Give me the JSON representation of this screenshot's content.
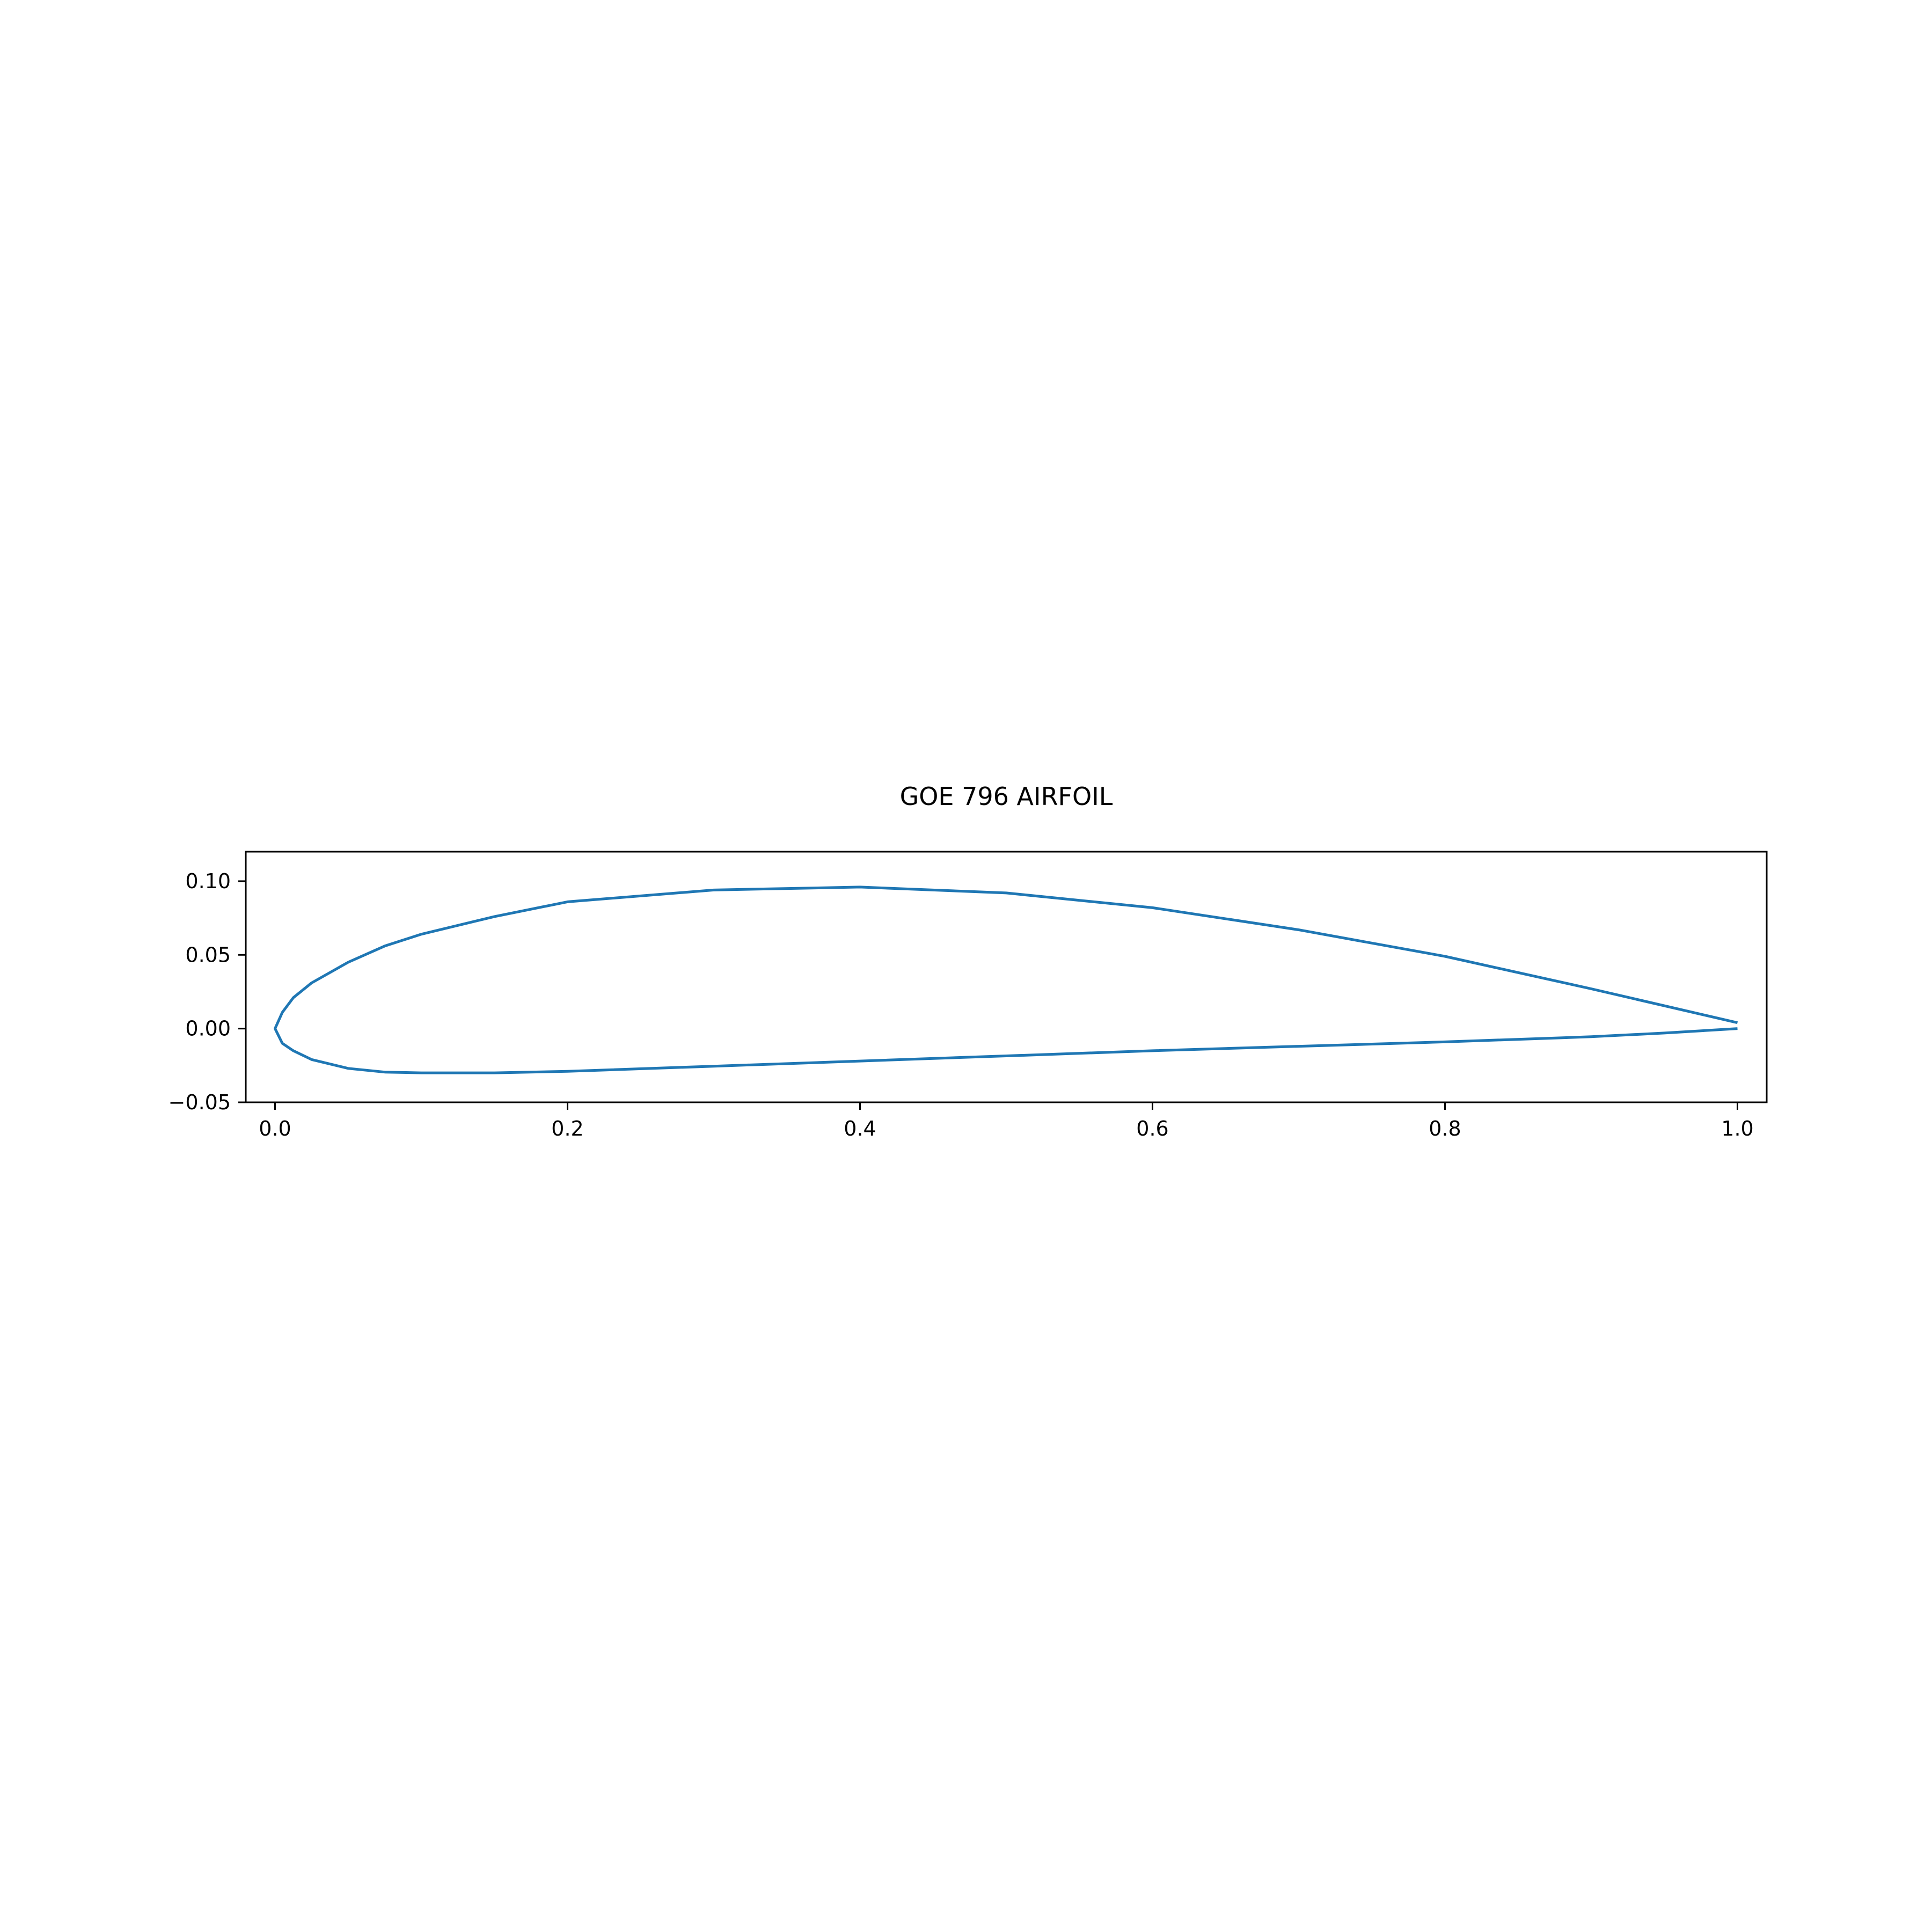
{
  "chart_data": {
    "type": "line",
    "title": "GOE 796 AIRFOIL",
    "xlabel": "",
    "ylabel": "",
    "xlim": [
      -0.02,
      1.02
    ],
    "ylim": [
      -0.05,
      0.12
    ],
    "x_ticks": [
      0.0,
      0.2,
      0.4,
      0.6,
      0.8,
      1.0
    ],
    "x_tick_labels": [
      "0.0",
      "0.2",
      "0.4",
      "0.6",
      "0.8",
      "1.0"
    ],
    "y_ticks": [
      -0.05,
      0.0,
      0.05,
      0.1
    ],
    "y_tick_labels": [
      "−0.05",
      "0.00",
      "0.05",
      "0.10"
    ],
    "grid": false,
    "series": [
      {
        "color": "#1f77b4",
        "x": [
          1.0,
          0.9,
          0.8,
          0.7,
          0.6,
          0.5,
          0.4,
          0.3,
          0.2,
          0.15,
          0.1,
          0.075,
          0.05,
          0.025,
          0.0125,
          0.005,
          0.0,
          0.005,
          0.0125,
          0.025,
          0.05,
          0.075,
          0.1,
          0.15,
          0.2,
          0.3,
          0.4,
          0.5,
          0.6,
          0.7,
          0.8,
          0.9,
          0.95,
          1.0
        ],
        "y": [
          0.004,
          0.027,
          0.049,
          0.067,
          0.082,
          0.092,
          0.096,
          0.094,
          0.086,
          0.076,
          0.064,
          0.056,
          0.045,
          0.031,
          0.021,
          0.011,
          0.0,
          -0.01,
          -0.015,
          -0.021,
          -0.027,
          -0.0295,
          -0.03,
          -0.03,
          -0.029,
          -0.0255,
          -0.022,
          -0.0185,
          -0.015,
          -0.012,
          -0.009,
          -0.0055,
          -0.003,
          0.0
        ]
      }
    ]
  }
}
